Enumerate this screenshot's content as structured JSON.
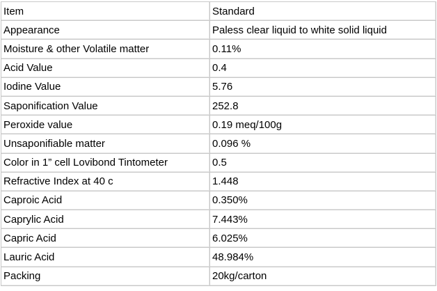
{
  "table": {
    "header": [
      "Item",
      "Standard"
    ],
    "rows": [
      [
        "Appearance",
        "Paless clear liquid to white solid liquid"
      ],
      [
        "Moisture & other Volatile matter",
        "0.11%"
      ],
      [
        "Acid Value",
        "0.4"
      ],
      [
        "Iodine Value",
        "5.76"
      ],
      [
        "Saponification Value",
        "252.8"
      ],
      [
        "Peroxide value",
        "0.19 meq/100g"
      ],
      [
        "Unsaponifiable matter",
        "0.096 %"
      ],
      [
        "Color in 1” cell Lovibond Tintometer",
        "0.5"
      ],
      [
        "Refractive Index at 40 c",
        "1.448"
      ],
      [
        "Caproic Acid",
        "0.350%"
      ],
      [
        "Caprylic Acid",
        "7.443%"
      ],
      [
        "Capric Acid",
        "6.025%"
      ],
      [
        "Lauric Acid",
        "48.984%"
      ],
      [
        "Packing",
        "20kg/carton"
      ]
    ]
  }
}
